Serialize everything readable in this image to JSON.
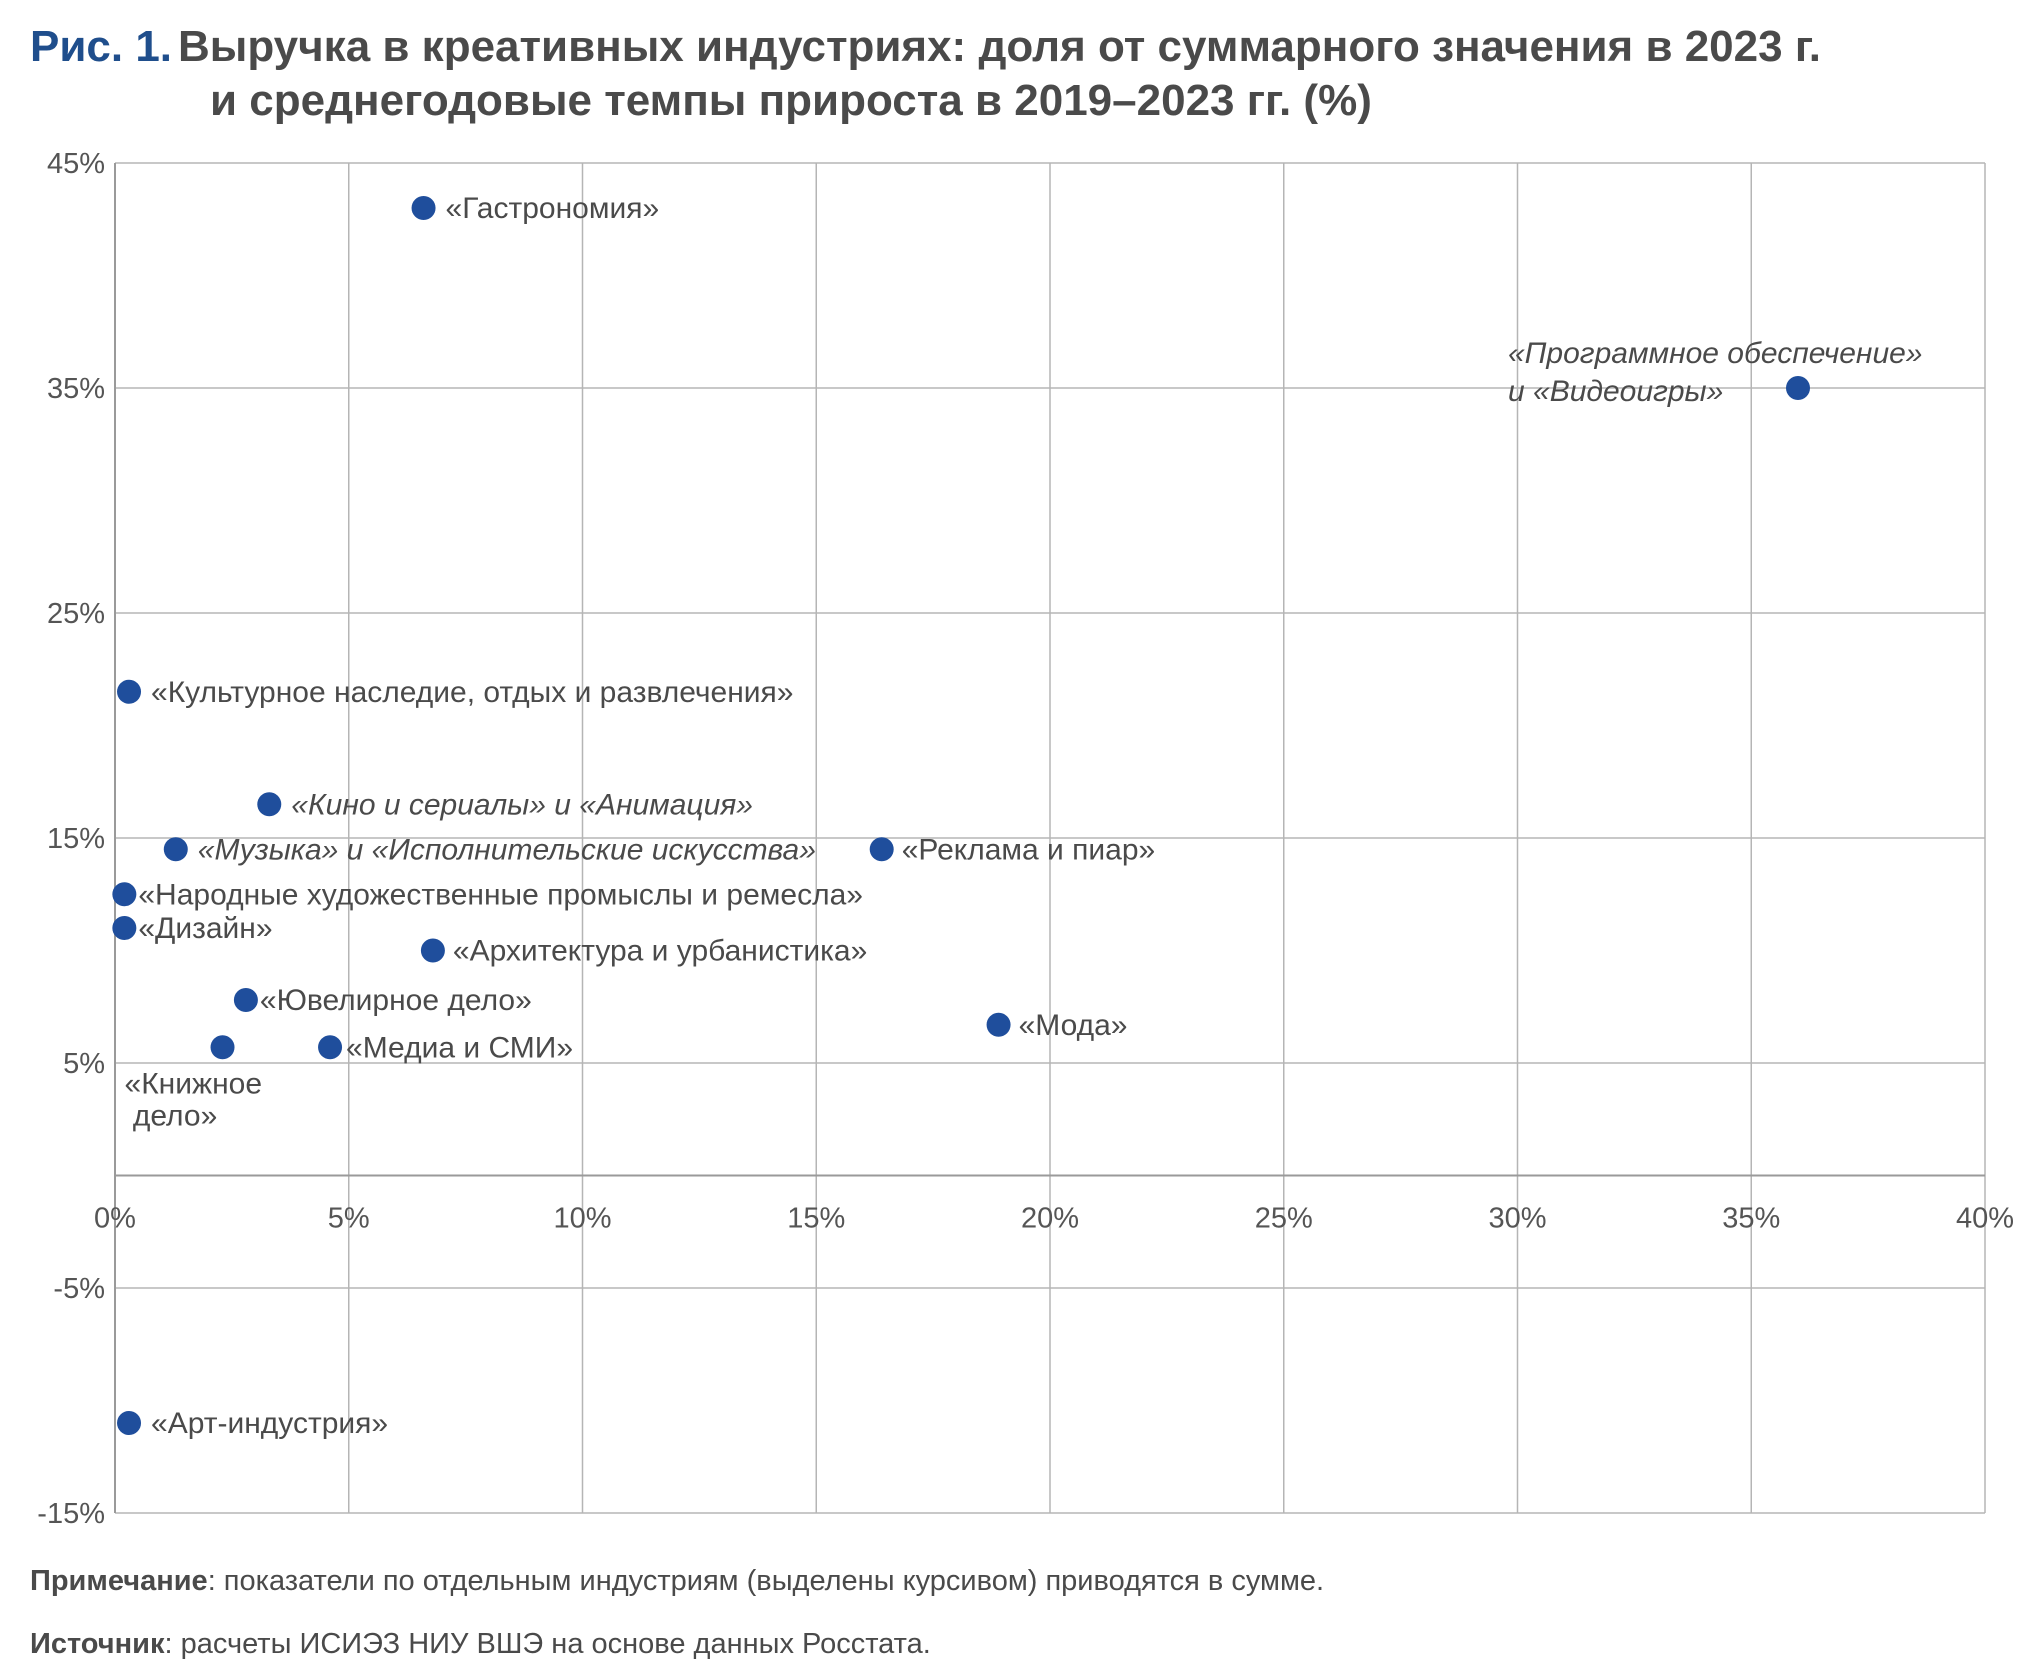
{
  "title": {
    "figure_number": "Рис. 1.",
    "line1": "Выручка в креативных индустриях: доля от суммарного значения в 2023 г.",
    "line2": "и среднегодовые темпы прироста в 2019–2023 гг. (%)"
  },
  "chart_data": {
    "type": "scatter",
    "title": "Выручка в креативных индустриях: доля от суммарного значения в 2023 г. и среднегодовые темпы прироста в 2019–2023 гг. (%)",
    "xlabel": "",
    "ylabel": "",
    "xlim": [
      0,
      40
    ],
    "ylim": [
      -15,
      45
    ],
    "x_ticks": [
      0,
      5,
      10,
      15,
      20,
      25,
      30,
      35,
      40
    ],
    "x_tick_labels": [
      "0%",
      "5%",
      "10%",
      "15%",
      "20%",
      "25%",
      "30%",
      "35%",
      "40%"
    ],
    "y_ticks": [
      -15,
      -5,
      5,
      15,
      25,
      35,
      45
    ],
    "y_tick_labels": [
      "-15%",
      "-5%",
      "5%",
      "15%",
      "25%",
      "35%",
      "45%"
    ],
    "grid": true,
    "marker_color": "#1f4e9c",
    "points": [
      {
        "label": "«Гастрономия»",
        "x": 6.6,
        "y": 43.0,
        "italic": false
      },
      {
        "label": "«Программное обеспечение» и «Видеоигры»",
        "label_lines": [
          "«Программное обеспечение»",
          "и «Видеоигры»"
        ],
        "x": 36.0,
        "y": 35.0,
        "italic": true
      },
      {
        "label": "«Культурное наследие, отдых и развлечения»",
        "x": 0.3,
        "y": 21.5,
        "italic": false
      },
      {
        "label": "«Кино и сериалы» и «Анимация»",
        "x": 3.3,
        "y": 16.5,
        "italic": true
      },
      {
        "label": "«Музыка» и «Исполнительские искусства»",
        "x": 1.3,
        "y": 14.5,
        "italic": true
      },
      {
        "label": "«Реклама и пиар»",
        "x": 16.4,
        "y": 14.5,
        "italic": false
      },
      {
        "label": "«Народные художественные промыслы и ремесла»",
        "x": 0.2,
        "y": 12.5,
        "italic": false
      },
      {
        "label": "«Дизайн»",
        "x": 0.2,
        "y": 11.0,
        "italic": false
      },
      {
        "label": "«Архитектура и урбанистика»",
        "x": 6.8,
        "y": 10.0,
        "italic": false
      },
      {
        "label": "«Ювелирное дело»",
        "x": 2.8,
        "y": 7.8,
        "italic": false
      },
      {
        "label": "«Мода»",
        "x": 18.9,
        "y": 6.7,
        "italic": false
      },
      {
        "label": "«Книжное дело»",
        "label_lines": [
          "«Книжное",
          " дело»"
        ],
        "x": 2.3,
        "y": 5.7,
        "italic": false
      },
      {
        "label": "«Медиа и СМИ»",
        "x": 4.6,
        "y": 5.7,
        "italic": false
      },
      {
        "label": "«Арт-индустрия»",
        "x": 0.3,
        "y": -11.0,
        "italic": false
      }
    ]
  },
  "footer": {
    "note_label": "Примечание",
    "note_text": ": показатели по отдельным индустриям (выделены курсивом) приводятся в сумме.",
    "source_label": "Источник",
    "source_text": ": расчеты ИСИЭЗ НИУ ВШЭ на основе данных Росстата."
  }
}
